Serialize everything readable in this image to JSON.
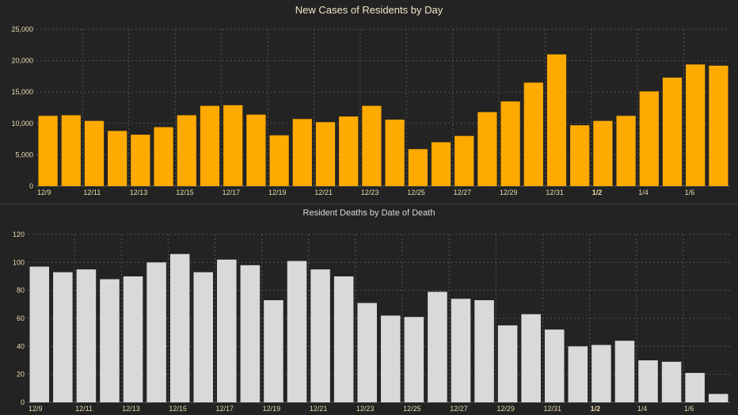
{
  "chart_data": [
    {
      "type": "bar",
      "title": "New Cases of Residents by Day",
      "categories": [
        "12/9",
        "12/10",
        "12/11",
        "12/12",
        "12/13",
        "12/14",
        "12/15",
        "12/16",
        "12/17",
        "12/18",
        "12/19",
        "12/20",
        "12/21",
        "12/22",
        "12/23",
        "12/24",
        "12/25",
        "12/26",
        "12/27",
        "12/28",
        "12/29",
        "12/30",
        "12/31",
        "1/1",
        "1/2",
        "1/3",
        "1/4",
        "1/5",
        "1/6",
        "1/7"
      ],
      "x_tick_labels": [
        "12/9",
        "12/11",
        "12/13",
        "12/15",
        "12/17",
        "12/19",
        "12/21",
        "12/23",
        "12/25",
        "12/27",
        "12/29",
        "12/31",
        "1/2",
        "1/4",
        "1/6"
      ],
      "bold_tick": "1/2",
      "values": [
        11200,
        11300,
        10400,
        8800,
        8200,
        9400,
        11300,
        12800,
        12900,
        11400,
        8100,
        10700,
        10200,
        11100,
        12800,
        10600,
        5900,
        7000,
        8000,
        11800,
        13500,
        16500,
        21000,
        9700,
        10400,
        11200,
        15100,
        17300,
        19400,
        19200
      ],
      "ylim": [
        0,
        25000
      ],
      "yticks": [
        0,
        5000,
        10000,
        15000,
        20000,
        25000
      ],
      "ytick_labels": [
        "0",
        "5,000",
        "10,000",
        "15,000",
        "20,000",
        "25,000"
      ],
      "xlabel": "",
      "ylabel": "",
      "grid": true,
      "colors": {
        "bar": "#FFAA00",
        "axis_text": "#e8dcb0",
        "grid": "#555555"
      }
    },
    {
      "type": "bar",
      "title": "Resident Deaths by Date of Death",
      "categories": [
        "12/9",
        "12/10",
        "12/11",
        "12/12",
        "12/13",
        "12/14",
        "12/15",
        "12/16",
        "12/17",
        "12/18",
        "12/19",
        "12/20",
        "12/21",
        "12/22",
        "12/23",
        "12/24",
        "12/25",
        "12/26",
        "12/27",
        "12/28",
        "12/29",
        "12/30",
        "12/31",
        "1/1",
        "1/2",
        "1/3",
        "1/4",
        "1/5",
        "1/6",
        "1/7"
      ],
      "x_tick_labels": [
        "12/9",
        "12/11",
        "12/13",
        "12/15",
        "12/17",
        "12/19",
        "12/21",
        "12/23",
        "12/25",
        "12/27",
        "12/29",
        "12/31",
        "1/2",
        "1/4",
        "1/6"
      ],
      "bold_tick": "1/2",
      "values": [
        97,
        93,
        95,
        88,
        90,
        100,
        106,
        93,
        102,
        98,
        73,
        101,
        95,
        90,
        71,
        62,
        61,
        79,
        74,
        73,
        55,
        63,
        52,
        40,
        41,
        44,
        30,
        29,
        21,
        6
      ],
      "ylim": [
        0,
        120
      ],
      "yticks": [
        0,
        20,
        40,
        60,
        80,
        100,
        120
      ],
      "ytick_labels": [
        "0",
        "20",
        "40",
        "60",
        "80",
        "100",
        "120"
      ],
      "xlabel": "",
      "ylabel": "",
      "grid": true,
      "colors": {
        "bar": "#D9D9D9",
        "axis_text": "#e8dcb0",
        "grid": "#555555"
      }
    }
  ]
}
